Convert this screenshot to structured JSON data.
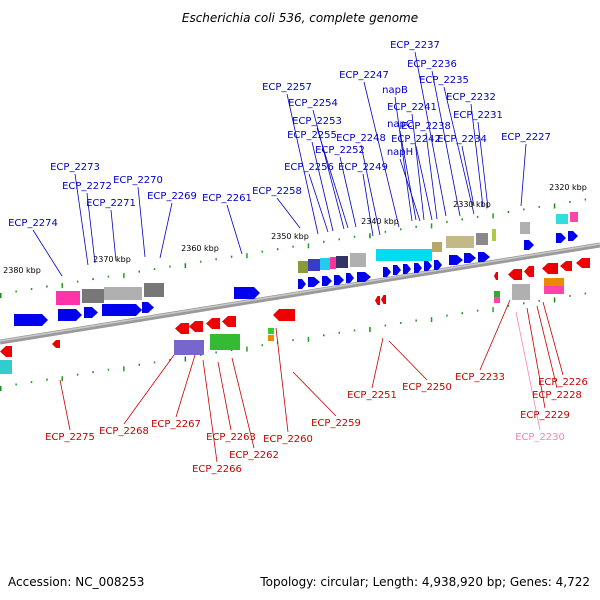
{
  "title": "Escherichia coli 536, complete genome",
  "footer": {
    "accession": "Accession: NC_008253",
    "summary": "Topology: circular; Length: 4,938,920 bp; Genes: 4,722"
  },
  "colors": {
    "forward_label": "#0000c8",
    "reverse_label": "#c80000",
    "highlight_label": "#ff82b4",
    "forward_gene": "#0000ee",
    "reverse_gene": "#ee0000",
    "backbone": "#808080"
  },
  "ticks": [
    "2320 kbp",
    "2330 kbp",
    "2340 kbp",
    "2350 kbp",
    "2360 kbp",
    "2370 kbp",
    "2380 kbp"
  ],
  "forward_labels": [
    "ECP_2274",
    "ECP_2273",
    "ECP_2272",
    "ECP_2271",
    "ECP_2270",
    "ECP_2269",
    "ECP_2261",
    "ECP_2258",
    "ECP_2257",
    "ECP_2256",
    "ECP_2255",
    "ECP_2254",
    "ECP_2253",
    "ECP_2252",
    "ECP_2249",
    "ECP_2248",
    "ECP_2247",
    "napB",
    "napC",
    "napH",
    "ECP_2241",
    "ECP_2242",
    "ECP_2238",
    "ECP_2237",
    "ECP_2236",
    "ECP_2235",
    "ECP_2234",
    "ECP_2232",
    "ECP_2231",
    "ECP_2227"
  ],
  "reverse_labels": [
    "ECP_2275",
    "ECP_2268",
    "ECP_2267",
    "ECP_2266",
    "ECP_2263",
    "ECP_2262",
    "ECP_2260",
    "ECP_2259",
    "ECP_2251",
    "ECP_2250",
    "ECP_2233",
    "ECP_2226",
    "ECP_2228",
    "ECP_2229",
    "ECP_2230"
  ]
}
